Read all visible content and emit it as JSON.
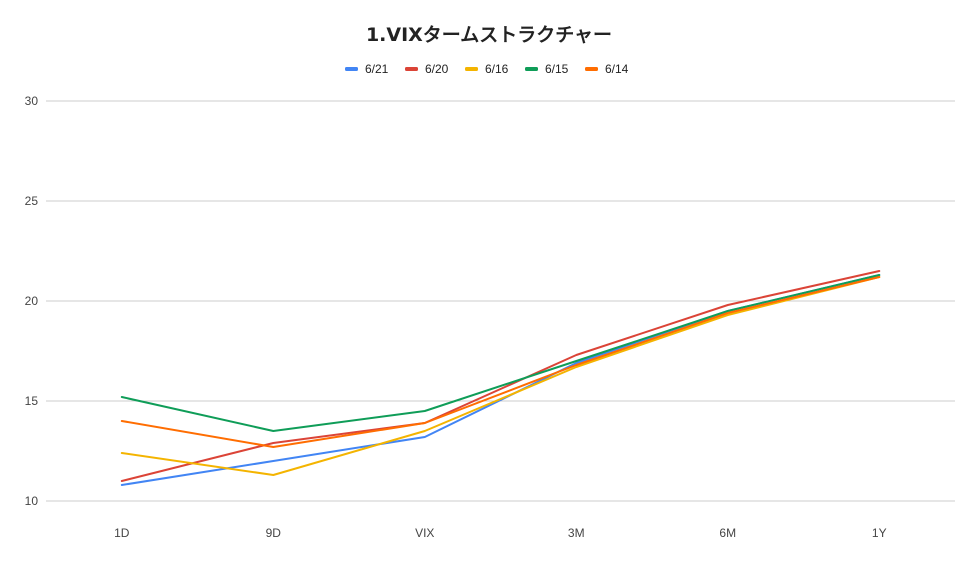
{
  "chart_data": {
    "type": "line",
    "title": "1.VIXタームストラクチャー",
    "categories": [
      "1D",
      "9D",
      "VIX",
      "3M",
      "6M",
      "1Y"
    ],
    "ylim": [
      10,
      30
    ],
    "yticks": [
      "10",
      "15",
      "20",
      "25",
      "30"
    ],
    "grid": true,
    "legend_position": "top",
    "series": [
      {
        "name": "6/21",
        "color": "#4285f4",
        "values": [
          10.8,
          12.0,
          13.2,
          16.9,
          19.5,
          21.3
        ]
      },
      {
        "name": "6/20",
        "color": "#db4437",
        "values": [
          11.0,
          12.9,
          13.9,
          17.3,
          19.8,
          21.5
        ]
      },
      {
        "name": "6/16",
        "color": "#f4b400",
        "values": [
          12.4,
          11.3,
          13.5,
          16.7,
          19.3,
          21.2
        ]
      },
      {
        "name": "6/15",
        "color": "#0f9d58",
        "values": [
          15.2,
          13.5,
          14.5,
          17.0,
          19.5,
          21.3
        ]
      },
      {
        "name": "6/14",
        "color": "#ff6d01",
        "values": [
          14.0,
          12.7,
          13.9,
          16.8,
          19.4,
          21.2
        ]
      }
    ]
  }
}
